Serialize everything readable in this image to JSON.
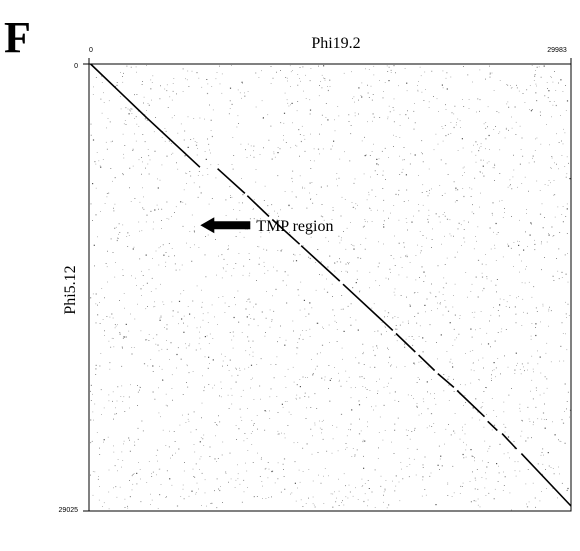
{
  "panel_label": "F",
  "chart_data": {
    "type": "scatter",
    "title": "",
    "xlabel": "Phi19.2",
    "ylabel": "Phi5.12",
    "xlim": [
      0,
      29983
    ],
    "ylim": [
      0,
      29025
    ],
    "y_axis_direction": "top-to-bottom",
    "x_axis_position": "top",
    "xticks": [
      "0",
      "29983"
    ],
    "yticks": [
      "0",
      "29025"
    ],
    "grid": false,
    "legend": "none",
    "colors": {
      "points": "#000000",
      "annotation": "#000000"
    },
    "annotation": {
      "text": "TMP region",
      "arrow_points_to": [
        6800,
        10600
      ]
    },
    "segments": [
      {
        "x1": 100,
        "y1": 0,
        "x2": 3600,
        "y2": 3500
      },
      {
        "x1": 3600,
        "y1": 3500,
        "x2": 6900,
        "y2": 6700
      },
      {
        "x1": 8000,
        "y1": 6800,
        "x2": 9700,
        "y2": 8400
      },
      {
        "x1": 9850,
        "y1": 8550,
        "x2": 11200,
        "y2": 9900
      },
      {
        "x1": 11400,
        "y1": 10100,
        "x2": 13100,
        "y2": 11700
      },
      {
        "x1": 13200,
        "y1": 11800,
        "x2": 15600,
        "y2": 14100
      },
      {
        "x1": 15800,
        "y1": 14300,
        "x2": 18900,
        "y2": 17300
      },
      {
        "x1": 19100,
        "y1": 17500,
        "x2": 20300,
        "y2": 18700
      },
      {
        "x1": 20500,
        "y1": 18900,
        "x2": 21500,
        "y2": 19900
      },
      {
        "x1": 21700,
        "y1": 20100,
        "x2": 22700,
        "y2": 21000
      },
      {
        "x1": 22900,
        "y1": 21200,
        "x2": 24600,
        "y2": 22900
      },
      {
        "x1": 24800,
        "y1": 23200,
        "x2": 25400,
        "y2": 23800
      },
      {
        "x1": 25700,
        "y1": 24000,
        "x2": 26600,
        "y2": 25000
      },
      {
        "x1": 26900,
        "y1": 25300,
        "x2": 29983,
        "y2": 28700
      }
    ],
    "noise_points": 2600,
    "noise_seed": 7
  }
}
